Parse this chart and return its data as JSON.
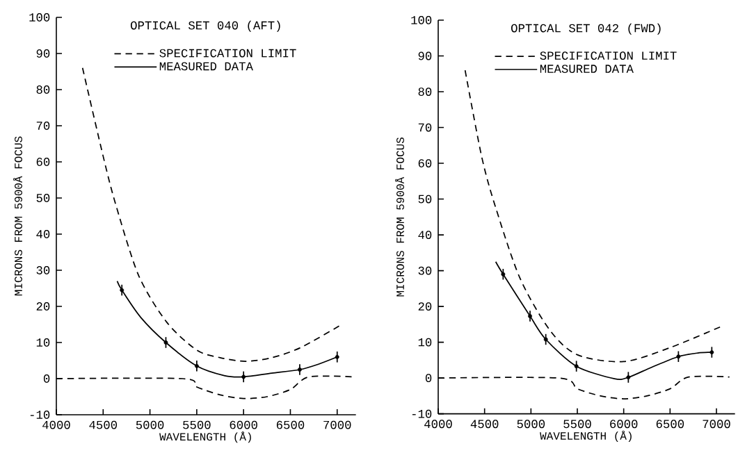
{
  "chart_data": [
    {
      "type": "line",
      "title": "OPTICAL SET 040  (AFT)",
      "xlabel": "WAVELENGTH (Å)",
      "ylabel": "MICRONS FROM 5900Å FOCUS",
      "xlim": [
        4000,
        7200
      ],
      "ylim": [
        -10,
        100
      ],
      "xticks": [
        4000,
        4500,
        5000,
        5500,
        6000,
        6500,
        7000
      ],
      "yticks": [
        -10,
        0,
        10,
        20,
        30,
        40,
        50,
        60,
        70,
        80,
        90,
        100
      ],
      "legend": "top",
      "series": [
        {
          "name": "SPECIFICATION LIMIT",
          "color": "#000000",
          "line_style": "dashed",
          "x": [
            4280,
            4510,
            4640,
            4880,
            5180,
            5500,
            5750,
            6020,
            6300,
            6610,
            7050
          ],
          "values": [
            86,
            60.5,
            47.7,
            28.5,
            15.6,
            7.9,
            5.8,
            4.8,
            5.8,
            8.6,
            15
          ]
        },
        {
          "name": "MEASURED DATA",
          "color": "#000000",
          "line_style": "solid",
          "x": [
            4650,
            4700,
            4900,
            5170,
            5500,
            5800,
            6000,
            6300,
            6600,
            6800,
            7000
          ],
          "values": [
            27,
            24.5,
            17,
            10,
            3.5,
            0.8,
            0.5,
            1.5,
            2.5,
            4,
            6
          ],
          "errors": [
            null,
            1.5,
            null,
            1.5,
            1.5,
            null,
            1.5,
            null,
            1.5,
            null,
            1.5
          ]
        },
        {
          "color": "#000000",
          "line_style": "dashed",
          "x": [
            4000,
            5350,
            5500,
            5750,
            6000,
            6250,
            6500,
            6700,
            7170
          ],
          "values": [
            0,
            0,
            -2.3,
            -4.5,
            -5.5,
            -5,
            -3,
            0.5,
            0.5
          ]
        }
      ]
    },
    {
      "type": "line",
      "title": "OPTICAL SET 042  (FWD)",
      "xlabel": "WAVELENGTH (Å)",
      "ylabel": "MICRONS FROM 5900Å FOCUS",
      "xlim": [
        4000,
        7200
      ],
      "ylim": [
        -10,
        100
      ],
      "xticks": [
        4000,
        4500,
        5000,
        5500,
        6000,
        6500,
        7000
      ],
      "yticks": [
        -10,
        0,
        10,
        20,
        30,
        40,
        50,
        60,
        70,
        80,
        90,
        100
      ],
      "legend": "top",
      "series": [
        {
          "name": "SPECIFICATION LIMIT",
          "color": "#000000",
          "line_style": "dashed",
          "x": [
            4290,
            4470,
            4620,
            4880,
            5200,
            5500,
            6000,
            6500,
            7060
          ],
          "values": [
            86,
            61.7,
            47.6,
            28,
            13.5,
            6.5,
            4.6,
            8.5,
            14.5
          ]
        },
        {
          "name": "MEASURED DATA",
          "color": "#000000",
          "line_style": "solid",
          "x": [
            4620,
            4700,
            4990,
            5160,
            5490,
            5900,
            6050,
            6300,
            6590,
            6800,
            6950
          ],
          "values": [
            32.5,
            29,
            17.3,
            10.8,
            3.3,
            -0.2,
            0.2,
            3,
            6,
            7,
            7.2
          ],
          "errors": [
            null,
            1.5,
            1.5,
            1.5,
            1.5,
            null,
            1.5,
            null,
            1.5,
            null,
            1.5
          ]
        },
        {
          "color": "#000000",
          "line_style": "dashed",
          "x": [
            4000,
            5300,
            5500,
            5750,
            6000,
            6250,
            6500,
            6700,
            7140
          ],
          "values": [
            0,
            0,
            -3,
            -5,
            -5.8,
            -5,
            -3,
            0.3,
            0.3
          ]
        }
      ]
    }
  ]
}
